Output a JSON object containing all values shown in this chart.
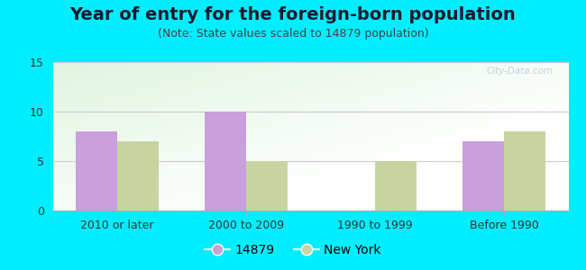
{
  "title": "Year of entry for the foreign-born population",
  "subtitle": "(Note: State values scaled to 14879 population)",
  "categories": [
    "2010 or later",
    "2000 to 2009",
    "1990 to 1999",
    "Before 1990"
  ],
  "series1_label": "14879",
  "series2_label": "New York",
  "series1_values": [
    8,
    10,
    0,
    7
  ],
  "series2_values": [
    7,
    5,
    5,
    8
  ],
  "series1_color": "#c9a0dc",
  "series2_color": "#c8d4a0",
  "ylim": [
    0,
    15
  ],
  "yticks": [
    0,
    5,
    10,
    15
  ],
  "background_outer": "#00eeff",
  "bar_width": 0.32,
  "title_fontsize": 14,
  "subtitle_fontsize": 9,
  "tick_fontsize": 9,
  "legend_fontsize": 10,
  "watermark": "City-Data.com",
  "grid_color": "#cccccc",
  "grad_top_color": "#d4edd8",
  "grad_bottom_color": "#f5fbf5"
}
